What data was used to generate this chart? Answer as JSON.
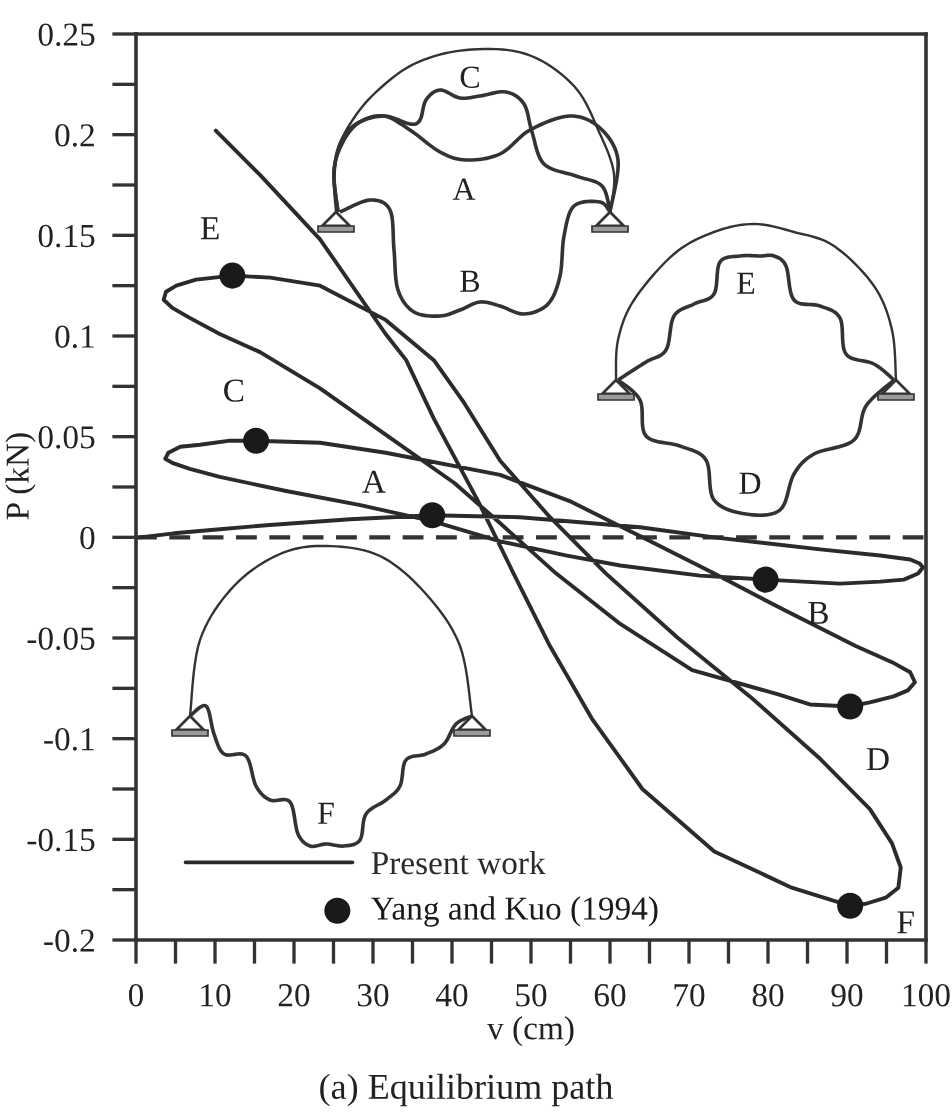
{
  "chart_data": {
    "type": "line",
    "title": "(a) Equilibrium path",
    "xlabel": "v (cm)",
    "ylabel": "P (kN)",
    "xlim": [
      0,
      100
    ],
    "ylim": [
      -0.2,
      0.25
    ],
    "xticks": [
      0,
      {
        "value": 5,
        "label": null
      },
      10,
      {
        "value": 15,
        "label": null
      },
      20,
      {
        "value": 25,
        "label": null
      },
      30,
      {
        "value": 35,
        "label": null
      },
      40,
      {
        "value": 45,
        "label": null
      },
      50,
      {
        "value": 55,
        "label": null
      },
      60,
      {
        "value": 65,
        "label": null
      },
      70,
      {
        "value": 75,
        "label": null
      },
      80,
      {
        "value": 85,
        "label": null
      },
      90,
      {
        "value": 95,
        "label": null
      },
      100
    ],
    "yticks": [
      -0.2,
      {
        "value": -0.175,
        "label": null
      },
      -0.15,
      {
        "value": -0.125,
        "label": null
      },
      -0.1,
      {
        "value": -0.075,
        "label": null
      },
      -0.05,
      {
        "value": -0.025,
        "label": null
      },
      0,
      {
        "value": 0.025,
        "label": null
      },
      0.05,
      {
        "value": 0.075,
        "label": null
      },
      0.1,
      {
        "value": 0.125,
        "label": null
      },
      0.15,
      {
        "value": 0.175,
        "label": null
      },
      0.2,
      {
        "value": 0.225,
        "label": null
      },
      0.25
    ],
    "legend": "bottom left",
    "series": [
      {
        "name": "Present work",
        "color": "#2b2b2b",
        "line_style": "solid",
        "x": [
          0.5,
          4.8,
          10.6,
          16.5,
          27.1,
          37.5,
          48.6,
          63.8,
          73.2,
          86.6,
          94.2,
          98.0,
          99.2,
          99.6,
          99.0,
          97.2,
          94.2,
          89.1,
          79.7,
          71.4,
          61.3,
          54.4,
          46.1,
          37.5,
          28.4,
          19.0,
          10.6,
          6.8,
          4.6,
          3.7,
          4.1,
          5.6,
          8.1,
          11.9,
          15.2,
          23.3,
          31.6,
          46.1,
          54.9,
          64.1,
          73.2,
          82.0,
          91.1,
          95.7,
          98.0,
          98.6,
          97.7,
          95.9,
          92.9,
          90.4,
          85.3,
          81.3,
          70.4,
          61.3,
          53.2,
          46.1,
          40.3,
          31.6,
          23.3,
          15.7,
          10.6,
          6.8,
          4.6,
          3.5,
          3.8,
          5.1,
          7.6,
          12.2,
          17.0,
          23.3,
          31.6,
          37.7,
          41.5,
          46.1,
          52.4,
          59.5,
          68.6,
          77.7,
          86.6,
          92.9,
          95.7,
          96.8,
          96.5,
          94.9,
          92.4,
          90.4,
          83.0,
          73.2,
          64.1,
          57.7,
          52.4,
          47.8,
          43.3,
          37.7,
          34.2,
          31.6,
          23.3,
          15.7,
          10.1
        ],
        "values": [
          0.0,
          0.002,
          0.004,
          0.006,
          0.009,
          0.011,
          0.01,
          0.005,
          0.0,
          -0.006,
          -0.009,
          -0.011,
          -0.013,
          -0.015,
          -0.018,
          -0.021,
          -0.022,
          -0.023,
          -0.021,
          -0.019,
          -0.014,
          -0.009,
          -0.002,
          0.008,
          0.016,
          0.023,
          0.03,
          0.034,
          0.037,
          0.039,
          0.042,
          0.045,
          0.046,
          0.048,
          0.048,
          0.047,
          0.042,
          0.031,
          0.018,
          0.0,
          -0.018,
          -0.036,
          -0.054,
          -0.062,
          -0.067,
          -0.072,
          -0.076,
          -0.079,
          -0.082,
          -0.084,
          -0.083,
          -0.078,
          -0.066,
          -0.043,
          -0.018,
          0.007,
          0.027,
          0.051,
          0.074,
          0.092,
          0.101,
          0.109,
          0.114,
          0.118,
          0.122,
          0.125,
          0.128,
          0.13,
          0.129,
          0.125,
          0.108,
          0.088,
          0.067,
          0.038,
          0.01,
          -0.018,
          -0.05,
          -0.079,
          -0.11,
          -0.135,
          -0.152,
          -0.164,
          -0.174,
          -0.179,
          -0.182,
          -0.183,
          -0.174,
          -0.156,
          -0.125,
          -0.09,
          -0.054,
          -0.018,
          0.018,
          0.059,
          0.088,
          0.101,
          0.148,
          0.18,
          0.202
        ]
      },
      {
        "name": "Yang and Kuo (1994)",
        "type": "scatter",
        "color": "#1a1a1a",
        "marker": "circle",
        "x": [
          37.5,
          79.7,
          15.2,
          90.4,
          12.2,
          90.4
        ],
        "values": [
          0.011,
          -0.021,
          0.048,
          -0.084,
          0.13,
          -0.183
        ]
      }
    ],
    "ref_lines": [
      {
        "axis": "y",
        "value": 0,
        "color": "#333333",
        "line_style": "dashed"
      }
    ],
    "annotations": [
      {
        "text": "A",
        "x": 37.5,
        "y": 0.011
      },
      {
        "text": "B",
        "x": 79.7,
        "y": -0.021
      },
      {
        "text": "C",
        "x": 15.2,
        "y": 0.048
      },
      {
        "text": "D",
        "x": 90.4,
        "y": -0.084
      },
      {
        "text": "E",
        "x": 12.2,
        "y": 0.13
      },
      {
        "text": "F",
        "x": 90.4,
        "y": -0.183
      },
      "C",
      "A",
      "B",
      "E",
      "D",
      "F"
    ]
  }
}
